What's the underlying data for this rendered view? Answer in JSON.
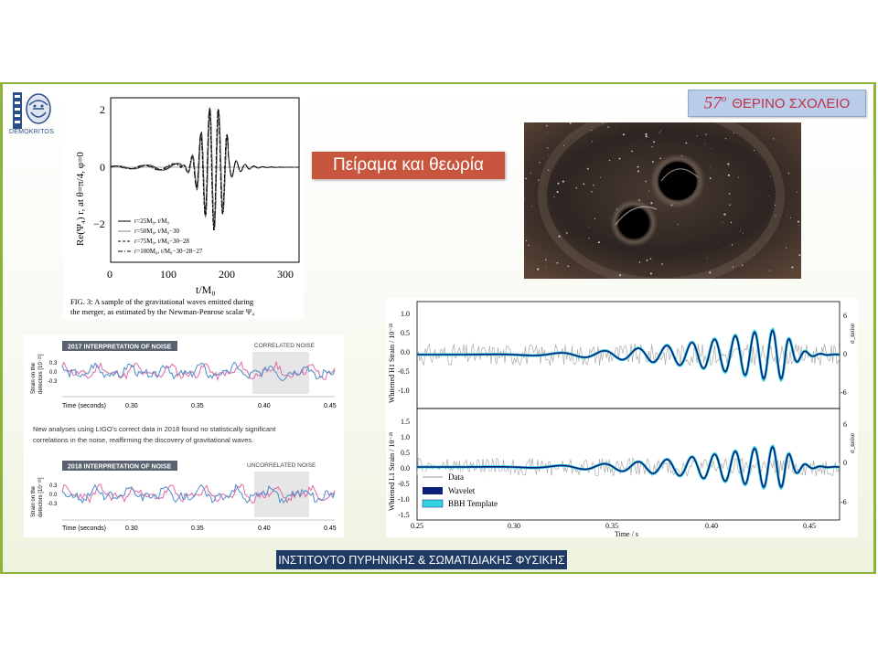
{
  "header": {
    "logo_caption": "DEMOKRITOS",
    "summer_school_number": "57",
    "summer_school_suffix": "ο",
    "summer_school_text": "ΘΕΡΙΝΟ ΣΧΟΛΕΙΟ"
  },
  "title": "Πείραμα και θεωρία",
  "footer": "ΙΝΣΤΙΤΟΥΤΟ ΠΥΡΗΝΙΚΗΣ & ΣΩΜΑΤΙΔΙΑΚΗΣ ΦΥΣΙΚΗΣ",
  "colors": {
    "accent_green": "#8db33a",
    "title_bg": "#c8553d",
    "footer_bg": "#1f3b63",
    "badge_bg": "#b9cde8",
    "badge_text": "#c0304a"
  },
  "figure_psi4": {
    "ylabel": "Re(Ψ₄) r, at θ=π/4, φ=0",
    "xlabel": "t/M₀",
    "xticks": [
      "0",
      "100",
      "200",
      "300"
    ],
    "yticks": [
      "2",
      "0",
      "−2"
    ],
    "legend": [
      "r=25M₀, t/M₀",
      "r=50M₀, t/M₀−30",
      "r=75M₀, t/M₀−30−28",
      "r=100M₀, t/M₀−30−28−27"
    ],
    "caption_line1": "FIG. 3:  A sample of the gravitational waves emitted during",
    "caption_line2": "the merger, as estimated by the Newman-Penrose scalar Ψ₄"
  },
  "figure_noise": {
    "panel1_label": "2017 INTERPRETATION OF NOISE",
    "panel1_tag": "CORRELATED NOISE",
    "panel2_label": "2018 INTERPRETATION OF NOISE",
    "panel2_tag": "UNCORRELATED NOISE",
    "ylabel_line1": "Strain on the",
    "ylabel_line2": "detectors [10⁻²¹]",
    "yticks": [
      "0.3",
      "0.0",
      "-0.3"
    ],
    "xaxis_label": "Time (seconds)",
    "xticks": [
      "0.30",
      "0.35",
      "0.40",
      "0.45"
    ],
    "note_line1": "New analyses using LIGO's correct data in 2018 found no statistically significant",
    "note_line2": "correlations in the noise, reaffirming the discovery of gravitational waves."
  },
  "figure_ligo": {
    "top_ylabel": "Whitened H1 Strain / 10⁻²¹",
    "bottom_ylabel": "Whitened L1 Strain / 10⁻²¹",
    "right_ylabel": "σ_noise",
    "top_yticks": [
      "1.0",
      "0.5",
      "0.0",
      "-0.5",
      "-1.0"
    ],
    "bottom_yticks": [
      "1.5",
      "1.0",
      "0.5",
      "0.0",
      "-0.5",
      "-1.0",
      "-1.5"
    ],
    "right_yticks": [
      "6",
      "4",
      "2",
      "0",
      "-2",
      "-4",
      "-6"
    ],
    "xticks": [
      "0.25",
      "0.30",
      "0.35",
      "0.40",
      "0.45"
    ],
    "xlabel": "Time / s",
    "legend": [
      "Data",
      "Wavelet",
      "BBH Template"
    ]
  }
}
